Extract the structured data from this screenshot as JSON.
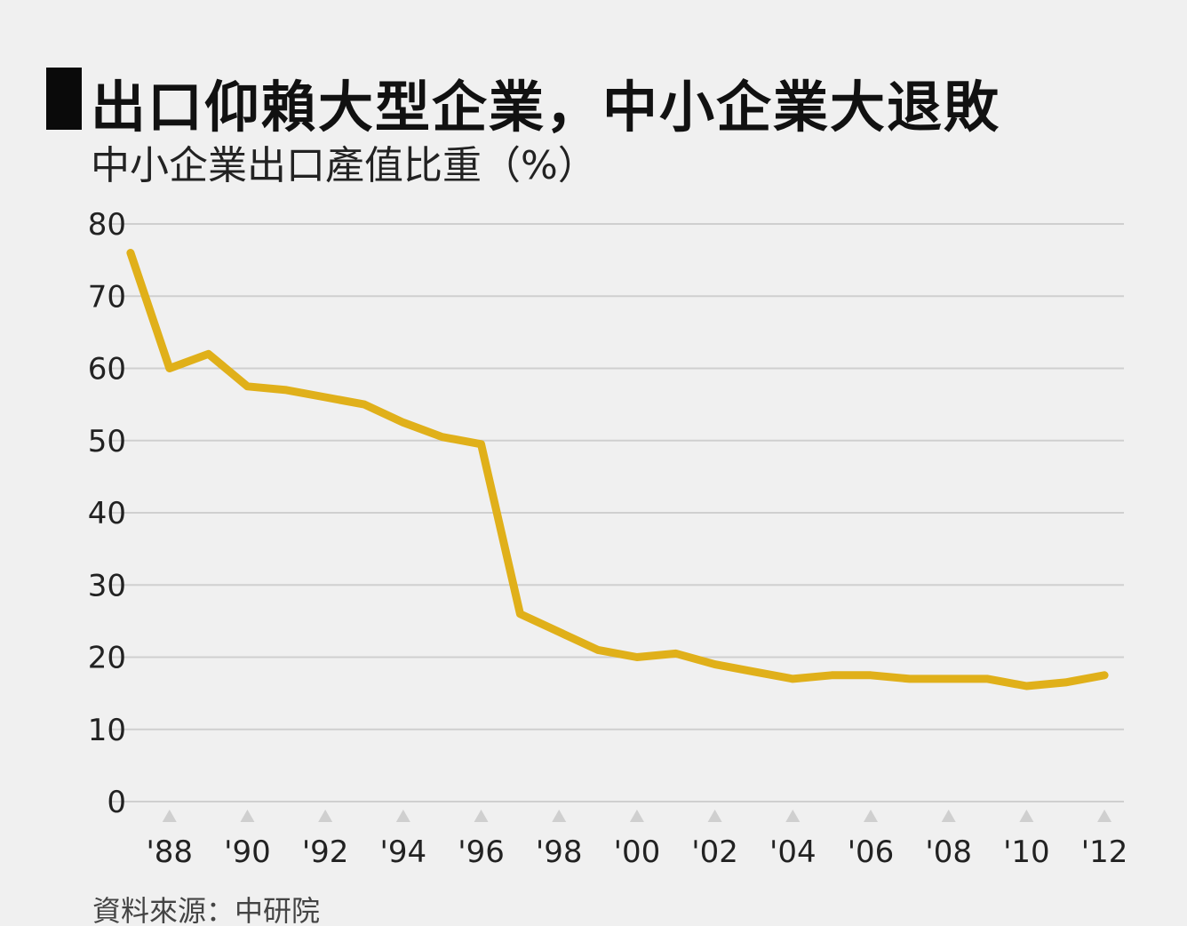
{
  "header": {
    "title": "出口仰賴大型企業，中小企業大退敗",
    "subtitle": "中小企業出口產值比重（%）"
  },
  "footer": {
    "source": "資料來源：中研院"
  },
  "colors": {
    "line": "#e0b01a",
    "grid": "#cfcfcf",
    "marker": "#cfcfcf",
    "background": "#f0f0f0"
  },
  "chart_data": {
    "type": "line",
    "title": "中小企業出口產值比重（%）",
    "xlabel": "",
    "ylabel": "",
    "ylim": [
      0,
      80
    ],
    "yticks": [
      0,
      10,
      20,
      30,
      40,
      50,
      60,
      70,
      80
    ],
    "xlim": [
      1986.5,
      2012.5
    ],
    "xtick_years": [
      1988,
      1990,
      1992,
      1994,
      1996,
      1998,
      2000,
      2002,
      2004,
      2006,
      2008,
      2010,
      2012
    ],
    "xtick_labels": [
      "'88",
      "'90",
      "'92",
      "'94",
      "'96",
      "'98",
      "'00",
      "'02",
      "'04",
      "'06",
      "'08",
      "'10",
      "'12"
    ],
    "grid": true,
    "legend": "none",
    "series": [
      {
        "x": [
          1987,
          1988,
          1989,
          1990,
          1991,
          1992,
          1993,
          1994,
          1995,
          1996,
          1997,
          1998,
          1999,
          2000,
          2001,
          2002,
          2003,
          2004,
          2005,
          2006,
          2007,
          2008,
          2009,
          2010,
          2011,
          2012
        ],
        "values": [
          76,
          60,
          62,
          57.5,
          57,
          56,
          55,
          52.5,
          50.5,
          49.5,
          26,
          23.5,
          21,
          20,
          20.5,
          19,
          18,
          17,
          17.5,
          17.5,
          17,
          17,
          17,
          16,
          16.5,
          17.5
        ]
      }
    ]
  }
}
